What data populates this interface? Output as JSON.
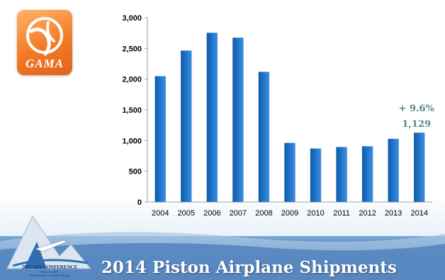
{
  "logo": {
    "text": "GAMA"
  },
  "conference": {
    "name": "2015 AIA CONFERENCE",
    "dates": "May 2-5, 2015",
    "venue": "The Broadmoor • Colorado Springs"
  },
  "title": "2014 Piston Airplane Shipments",
  "colors": {
    "bar": "#1f73c7",
    "annotation": "#4e8c8a",
    "footer": "#2a5d9f",
    "logo": "#f47a26"
  },
  "chart_data": {
    "type": "bar",
    "title": "2014 Piston Airplane Shipments",
    "categories": [
      "2004",
      "2005",
      "2006",
      "2007",
      "2008",
      "2009",
      "2010",
      "2011",
      "2012",
      "2013",
      "2014"
    ],
    "values": [
      2048,
      2465,
      2755,
      2675,
      2119,
      963,
      871,
      896,
      908,
      1029,
      1129
    ],
    "yticks": [
      "0",
      "500",
      "1,000",
      "1,500",
      "2,000",
      "2,500",
      "3,000"
    ],
    "ylim": [
      0,
      3000
    ],
    "grid": false,
    "annotations": [
      {
        "category": "2014",
        "text": "+ 9.6%"
      },
      {
        "category": "2014",
        "text": "1,129"
      }
    ]
  }
}
